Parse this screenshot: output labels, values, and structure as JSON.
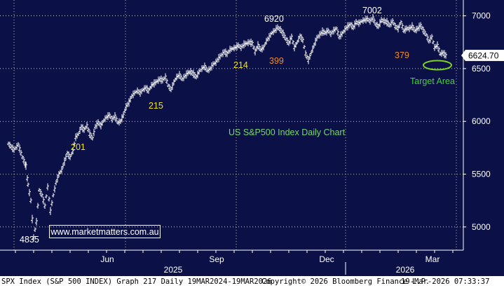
{
  "chart_data": {
    "type": "ohlc",
    "title": "US S&P500 Index Daily Chart",
    "y_ticks": [
      5000,
      5500,
      6000,
      6500,
      7000
    ],
    "ylim": [
      4780,
      7150
    ],
    "x_month_labels": [
      "Jun",
      "Sep",
      "Dec",
      "Mar"
    ],
    "x_year_labels": [
      "2025",
      "2026"
    ],
    "last_price_label": "6624.70",
    "grid": true,
    "series": [
      {
        "points": [
          [
            0,
            5790
          ],
          [
            8,
            5730
          ],
          [
            14,
            5780
          ],
          [
            20,
            5660
          ],
          [
            25,
            5580
          ],
          [
            28,
            5400
          ],
          [
            32,
            5250
          ],
          [
            36,
            4900
          ],
          [
            40,
            5050
          ],
          [
            44,
            5350
          ],
          [
            48,
            5300
          ],
          [
            52,
            5200
          ],
          [
            56,
            5380
          ],
          [
            60,
            5150
          ],
          [
            64,
            5300
          ],
          [
            68,
            5420
          ],
          [
            72,
            5500
          ],
          [
            76,
            5540
          ],
          [
            80,
            5620
          ],
          [
            84,
            5700
          ],
          [
            88,
            5660
          ],
          [
            92,
            5720
          ],
          [
            96,
            5850
          ],
          [
            100,
            5880
          ],
          [
            104,
            5950
          ],
          [
            108,
            5920
          ],
          [
            112,
            5960
          ],
          [
            116,
            5880
          ],
          [
            120,
            5840
          ],
          [
            124,
            5950
          ],
          [
            128,
            5990
          ],
          [
            132,
            5960
          ],
          [
            136,
            6010
          ],
          [
            140,
            6040
          ],
          [
            144,
            6060
          ],
          [
            148,
            6020
          ],
          [
            152,
            6050
          ],
          [
            156,
            5990
          ],
          [
            160,
            6000
          ],
          [
            164,
            6060
          ],
          [
            168,
            6140
          ],
          [
            172,
            6180
          ],
          [
            176,
            6240
          ],
          [
            180,
            6270
          ],
          [
            184,
            6290
          ],
          [
            188,
            6270
          ],
          [
            192,
            6300
          ],
          [
            196,
            6320
          ],
          [
            200,
            6290
          ],
          [
            204,
            6340
          ],
          [
            208,
            6360
          ],
          [
            212,
            6380
          ],
          [
            216,
            6400
          ],
          [
            220,
            6390
          ],
          [
            224,
            6420
          ],
          [
            228,
            6340
          ],
          [
            232,
            6300
          ],
          [
            236,
            6370
          ],
          [
            240,
            6420
          ],
          [
            244,
            6440
          ],
          [
            248,
            6400
          ],
          [
            252,
            6430
          ],
          [
            256,
            6460
          ],
          [
            260,
            6470
          ],
          [
            264,
            6450
          ],
          [
            268,
            6420
          ],
          [
            272,
            6470
          ],
          [
            276,
            6500
          ],
          [
            280,
            6520
          ],
          [
            284,
            6480
          ],
          [
            288,
            6500
          ],
          [
            292,
            6540
          ],
          [
            296,
            6560
          ],
          [
            300,
            6600
          ],
          [
            304,
            6630
          ],
          [
            308,
            6660
          ],
          [
            312,
            6640
          ],
          [
            316,
            6680
          ],
          [
            320,
            6690
          ],
          [
            324,
            6700
          ],
          [
            328,
            6720
          ],
          [
            332,
            6700
          ],
          [
            336,
            6730
          ],
          [
            340,
            6740
          ],
          [
            344,
            6750
          ],
          [
            348,
            6740
          ],
          [
            352,
            6660
          ],
          [
            356,
            6720
          ],
          [
            360,
            6680
          ],
          [
            364,
            6700
          ],
          [
            368,
            6760
          ],
          [
            372,
            6800
          ],
          [
            376,
            6840
          ],
          [
            380,
            6860
          ],
          [
            384,
            6890
          ],
          [
            388,
            6870
          ],
          [
            392,
            6830
          ],
          [
            396,
            6780
          ],
          [
            400,
            6740
          ],
          [
            404,
            6800
          ],
          [
            408,
            6700
          ],
          [
            412,
            6750
          ],
          [
            416,
            6810
          ],
          [
            420,
            6770
          ],
          [
            424,
            6640
          ],
          [
            428,
            6580
          ],
          [
            432,
            6650
          ],
          [
            436,
            6720
          ],
          [
            440,
            6790
          ],
          [
            444,
            6820
          ],
          [
            448,
            6850
          ],
          [
            452,
            6840
          ],
          [
            456,
            6860
          ],
          [
            460,
            6830
          ],
          [
            464,
            6860
          ],
          [
            468,
            6880
          ],
          [
            472,
            6800
          ],
          [
            476,
            6830
          ],
          [
            480,
            6870
          ],
          [
            484,
            6900
          ],
          [
            488,
            6920
          ],
          [
            492,
            6890
          ],
          [
            496,
            6940
          ],
          [
            500,
            6930
          ],
          [
            504,
            6950
          ],
          [
            508,
            6960
          ],
          [
            512,
            6970
          ],
          [
            516,
            6950
          ],
          [
            520,
            6980
          ],
          [
            524,
            6920
          ],
          [
            528,
            6900
          ],
          [
            532,
            6960
          ],
          [
            536,
            6950
          ],
          [
            540,
            6940
          ],
          [
            544,
            6910
          ],
          [
            548,
            6950
          ],
          [
            552,
            6900
          ],
          [
            556,
            6880
          ],
          [
            560,
            6940
          ],
          [
            564,
            6860
          ],
          [
            568,
            6880
          ],
          [
            572,
            6880
          ],
          [
            576,
            6900
          ],
          [
            580,
            6860
          ],
          [
            584,
            6880
          ],
          [
            588,
            6910
          ],
          [
            592,
            6860
          ],
          [
            596,
            6820
          ],
          [
            600,
            6760
          ],
          [
            604,
            6800
          ],
          [
            608,
            6700
          ],
          [
            612,
            6720
          ],
          [
            616,
            6640
          ],
          [
            620,
            6650
          ],
          [
            624,
            6625
          ]
        ]
      }
    ],
    "annotations": [
      {
        "text": "4835",
        "color": "#ffffff"
      },
      {
        "text": "201",
        "color": "#f2e21d"
      },
      {
        "text": "215",
        "color": "#f2e21d"
      },
      {
        "text": "214",
        "color": "#f2e21d"
      },
      {
        "text": "399",
        "color": "#f08a2c"
      },
      {
        "text": "6920",
        "color": "#ffffff"
      },
      {
        "text": "7002",
        "color": "#ffffff"
      },
      {
        "text": "379",
        "color": "#f08a2c"
      },
      {
        "text": "Target Area",
        "color": "#45d23a"
      }
    ]
  },
  "watermark": "www.marketmatters.com.au",
  "footer": {
    "left": "SPX Index (S&P 500 INDEX) Graph 217 Daily 19MAR2024-19MAR2026",
    "center": "Copyright© 2026 Bloomberg Finance L.P.",
    "right": "19-Mar-2026 07:33:37"
  },
  "colors": {
    "background": "#0b1147",
    "grid": "#ffffff",
    "price": "#ffffff",
    "title": "#77d86b",
    "target_ellipse": "#7ed321"
  }
}
